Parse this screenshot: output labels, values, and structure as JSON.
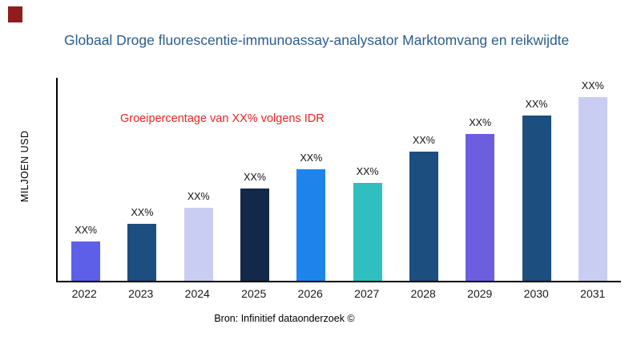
{
  "brand": {
    "mark_color": "#8f1d1d"
  },
  "header": {
    "title": "Globaal Droge fluorescentie-immunoassay-analysator Marktomvang en reikwijdte",
    "title_color": "#2a5d8f"
  },
  "chart_data": {
    "type": "bar",
    "title": "Globaal Droge fluorescentie-immunoassay-analysator Marktomvang en reikwijdte",
    "ylabel": "MILJOEN USD",
    "xlabel": "",
    "annotation": "Groeipercentage van XX% volgens IDR",
    "annotation_color": "#ee2424",
    "source": "Bron: Infinitief dataonderzoek ©",
    "legend": "none",
    "grid": false,
    "categories": [
      "2022",
      "2023",
      "2024",
      "2025",
      "2026",
      "2027",
      "2028",
      "2029",
      "2030",
      "2031"
    ],
    "bar_labels": [
      "XX%",
      "XX%",
      "XX%",
      "XX%",
      "XX%",
      "XX%",
      "XX%",
      "XX%",
      "XX%",
      "XX%"
    ],
    "values_pct_of_plot_height": [
      19.2,
      28.2,
      36.1,
      45.5,
      54.9,
      48.2,
      63.5,
      72.2,
      81.6,
      90.6
    ],
    "bar_colors": [
      "#5d5fe8",
      "#1c4e80",
      "#c9cdf2",
      "#13294a",
      "#1d84ec",
      "#30bfbf",
      "#1c4e80",
      "#6d5ee0",
      "#1c4e80",
      "#c9cdf2"
    ]
  }
}
